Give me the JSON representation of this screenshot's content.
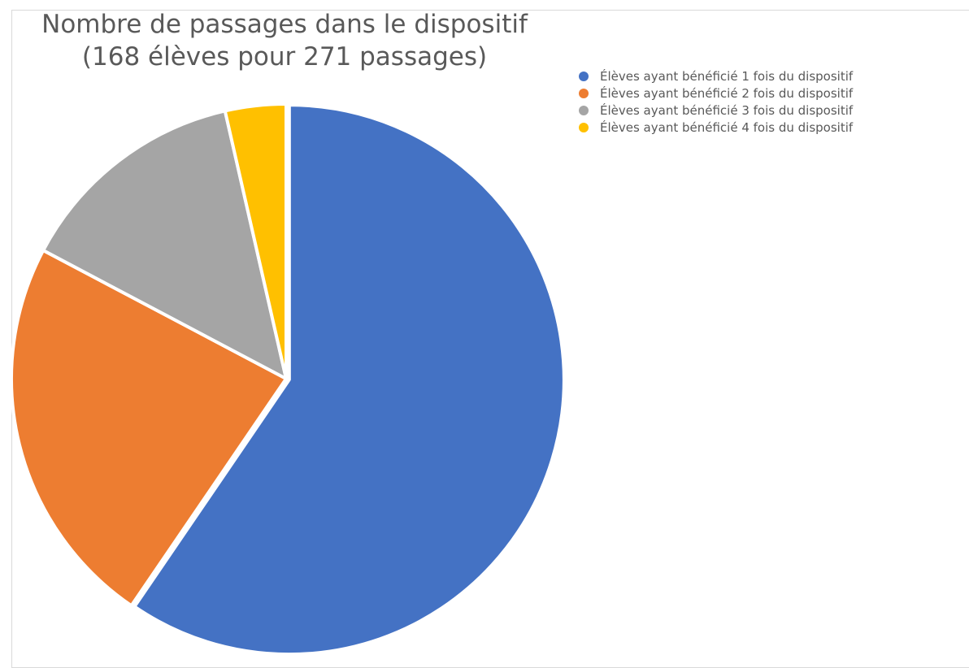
{
  "chart_data": {
    "type": "pie",
    "title": "Nombre de passages dans le dispositif",
    "subtitle": "(168 élèves pour 271 passages)",
    "categories": [
      "Élèves ayant bénéficié 1 fois du dispositif",
      "Élèves ayant bénéficié 2 fois du dispositif",
      "Élèves ayant bénéficié 3 fois du dispositif",
      "Élèves ayant bénéficié 4 fois du dispositif"
    ],
    "values": [
      100,
      39,
      23,
      6
    ],
    "colors": [
      "#4472C4",
      "#ED7D31",
      "#A5A5A5",
      "#FFC000"
    ],
    "legend_position": "right"
  }
}
